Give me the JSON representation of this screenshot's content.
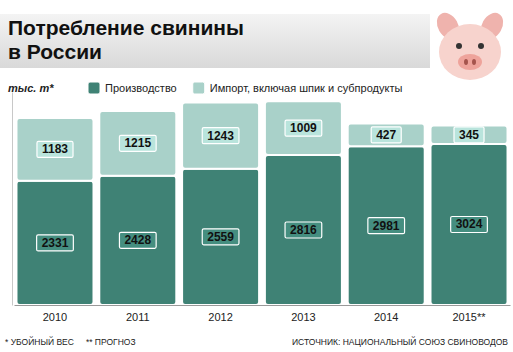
{
  "chart_data": {
    "type": "bar",
    "title": "Потребление свинины\nв России",
    "ylabel": "тыс. т*",
    "categories": [
      "2010",
      "2011",
      "2012",
      "2013",
      "2014",
      "2015**"
    ],
    "series": [
      {
        "name": "Производство",
        "color": "#3f8275",
        "values": [
          2331,
          2428,
          2559,
          2816,
          2981,
          3024
        ]
      },
      {
        "name": "Импорт, включая шпик и субпродукты",
        "color": "#a9d1c9",
        "values": [
          1183,
          1215,
          1243,
          1009,
          427,
          345
        ]
      }
    ],
    "stacked": true,
    "data_labels": true,
    "legend": "top",
    "grid": false,
    "tick_labels": "x",
    "ylim": [
      0,
      4000
    ],
    "yticks": [],
    "annotations": [
      "* УБОЙНЫЙ ВЕС",
      "** ПРОГНОЗ",
      "ИСТОЧНИК: НАЦИОНАЛЬНЫЙ СОЮЗ СВИНОВОДОВ"
    ]
  }
}
